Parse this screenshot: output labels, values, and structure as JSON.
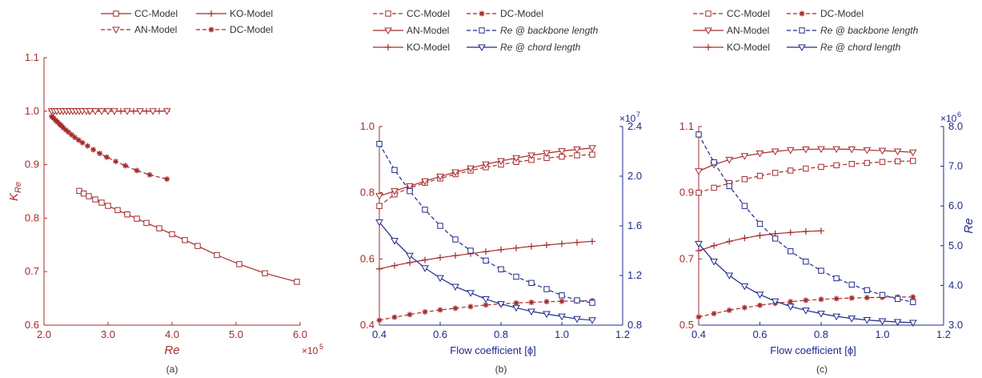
{
  "colors": {
    "red": "#a52a2a",
    "blue": "#1f2a8a",
    "dark": "#333333"
  },
  "chart_data": [
    {
      "panel": "(a)",
      "type": "line",
      "xlabel": "Re",
      "ylabel": "K_Re",
      "xlim": [
        2.0,
        6.0
      ],
      "ylim": [
        0.6,
        1.1
      ],
      "x_ticks": [
        "2.0",
        "3.0",
        "4.0",
        "5.0",
        "6.0"
      ],
      "y_ticks": [
        "0.6",
        "0.7",
        "0.8",
        "0.9",
        "1.0",
        "1.1"
      ],
      "x_multiplier": "×10",
      "x_multiplier_exp": "5",
      "legend": [
        "CC-Model",
        "KO-Model",
        "AN-Model",
        "DC-Model"
      ],
      "series": [
        {
          "name": "CC-Model",
          "style": "solid",
          "marker": "square",
          "x": [
            2.55,
            2.62,
            2.7,
            2.8,
            2.9,
            3.0,
            3.15,
            3.3,
            3.45,
            3.6,
            3.8,
            4.0,
            4.2,
            4.4,
            4.7,
            5.05,
            5.45,
            5.95
          ],
          "y": [
            0.851,
            0.846,
            0.841,
            0.835,
            0.829,
            0.823,
            0.815,
            0.807,
            0.799,
            0.791,
            0.781,
            0.77,
            0.759,
            0.748,
            0.731,
            0.714,
            0.697,
            0.681
          ]
        },
        {
          "name": "KO-Model",
          "style": "solid",
          "marker": "plus",
          "x": [
            2.12,
            2.2,
            2.3,
            2.4,
            2.5,
            2.6,
            2.7,
            2.8,
            2.9,
            3.0,
            3.2,
            3.4,
            3.6,
            3.8,
            3.92
          ],
          "y": [
            1.0,
            1.0,
            1.0,
            1.0,
            1.0,
            1.0,
            1.0,
            1.0,
            1.0,
            1.0,
            1.0,
            1.0,
            1.0,
            1.0,
            1.0
          ]
        },
        {
          "name": "AN-Model",
          "style": "dashed",
          "marker": "triangle-down",
          "x": [
            2.12,
            2.16,
            2.2,
            2.25,
            2.3,
            2.35,
            2.4,
            2.45,
            2.5,
            2.55,
            2.6,
            2.66,
            2.72,
            2.8,
            2.9,
            3.0,
            3.1,
            3.3,
            3.5,
            3.7,
            3.92
          ],
          "y": [
            1.0,
            1.0,
            1.0,
            1.0,
            1.0,
            1.0,
            1.0,
            1.0,
            1.0,
            1.0,
            1.0,
            1.0,
            1.0,
            1.0,
            1.0,
            1.0,
            1.0,
            1.0,
            1.0,
            1.0,
            1.0
          ]
        },
        {
          "name": "DC-Model",
          "style": "dashed",
          "marker": "asterisk",
          "x": [
            2.12,
            2.15,
            2.18,
            2.21,
            2.24,
            2.27,
            2.3,
            2.34,
            2.38,
            2.43,
            2.48,
            2.54,
            2.6,
            2.68,
            2.77,
            2.87,
            2.98,
            3.12,
            3.27,
            3.45,
            3.65,
            3.92
          ],
          "y": [
            0.99,
            0.987,
            0.983,
            0.98,
            0.976,
            0.973,
            0.969,
            0.965,
            0.961,
            0.956,
            0.951,
            0.946,
            0.941,
            0.935,
            0.928,
            0.921,
            0.914,
            0.906,
            0.898,
            0.889,
            0.881,
            0.873
          ]
        }
      ]
    },
    {
      "panel": "(b)",
      "type": "line",
      "xlabel": "Flow coefficient [ϕ]",
      "xlim": [
        0.4,
        1.2
      ],
      "ylim": [
        0.4,
        1.0
      ],
      "y2lim": [
        0.8,
        2.4
      ],
      "x_ticks": [
        "0.4",
        "0.6",
        "0.8",
        "1.0",
        "1.2"
      ],
      "y_ticks": [
        "0.4",
        "0.6",
        "0.8",
        "1.0"
      ],
      "y2_ticks": [
        "0.8",
        "1.2",
        "1.6",
        "2.0",
        "2.4"
      ],
      "y2_multiplier": "×10",
      "y2_multiplier_exp": "7",
      "legend": [
        "CC-Model",
        "DC-Model",
        "AN-Model",
        "Re @ backbone length",
        "KO-Model",
        "Re @ chord length"
      ],
      "series": [
        {
          "name": "CC-Model",
          "axis": "left",
          "style": "dashed",
          "marker": "square",
          "x": [
            0.4,
            0.45,
            0.5,
            0.55,
            0.6,
            0.65,
            0.7,
            0.75,
            0.8,
            0.85,
            0.9,
            0.95,
            1.0,
            1.05,
            1.1
          ],
          "y": [
            0.76,
            0.795,
            0.815,
            0.83,
            0.843,
            0.856,
            0.867,
            0.877,
            0.885,
            0.893,
            0.899,
            0.905,
            0.909,
            0.913,
            0.915
          ]
        },
        {
          "name": "AN-Model",
          "axis": "left",
          "style": "solid",
          "marker": "triangle-down",
          "x": [
            0.4,
            0.45,
            0.5,
            0.55,
            0.6,
            0.65,
            0.7,
            0.75,
            0.8,
            0.85,
            0.9,
            0.95,
            1.0,
            1.05,
            1.1
          ],
          "y": [
            0.79,
            0.805,
            0.82,
            0.835,
            0.849,
            0.862,
            0.874,
            0.886,
            0.896,
            0.905,
            0.913,
            0.92,
            0.926,
            0.931,
            0.935
          ]
        },
        {
          "name": "KO-Model",
          "axis": "left",
          "style": "solid",
          "marker": "plus",
          "x": [
            0.4,
            0.45,
            0.5,
            0.55,
            0.6,
            0.65,
            0.7,
            0.75,
            0.8,
            0.85,
            0.9,
            0.95,
            1.0,
            1.05,
            1.1
          ],
          "y": [
            0.57,
            0.58,
            0.589,
            0.597,
            0.604,
            0.61,
            0.616,
            0.622,
            0.628,
            0.633,
            0.638,
            0.642,
            0.646,
            0.65,
            0.653
          ]
        },
        {
          "name": "DC-Model",
          "axis": "left",
          "style": "dashed",
          "marker": "asterisk",
          "x": [
            0.4,
            0.45,
            0.5,
            0.55,
            0.6,
            0.65,
            0.7,
            0.75,
            0.8,
            0.85,
            0.9,
            0.95,
            1.0,
            1.05,
            1.1
          ],
          "y": [
            0.415,
            0.424,
            0.432,
            0.44,
            0.446,
            0.451,
            0.456,
            0.461,
            0.464,
            0.467,
            0.469,
            0.471,
            0.472,
            0.473,
            0.474
          ]
        },
        {
          "name": "Re @ backbone length",
          "axis": "right",
          "style": "dashed",
          "marker": "square",
          "x": [
            0.4,
            0.45,
            0.5,
            0.55,
            0.6,
            0.65,
            0.7,
            0.75,
            0.8,
            0.85,
            0.9,
            0.95,
            1.0,
            1.05,
            1.1
          ],
          "y": [
            2.26,
            2.05,
            1.88,
            1.73,
            1.6,
            1.49,
            1.4,
            1.32,
            1.25,
            1.19,
            1.14,
            1.09,
            1.04,
            1.0,
            0.98
          ]
        },
        {
          "name": "Re @ chord length",
          "axis": "right",
          "style": "solid",
          "marker": "triangle-down",
          "x": [
            0.4,
            0.45,
            0.5,
            0.55,
            0.6,
            0.65,
            0.7,
            0.75,
            0.8,
            0.85,
            0.9,
            0.95,
            1.0,
            1.05,
            1.1
          ],
          "y": [
            1.63,
            1.48,
            1.36,
            1.26,
            1.18,
            1.11,
            1.06,
            1.01,
            0.97,
            0.94,
            0.91,
            0.89,
            0.87,
            0.85,
            0.84
          ]
        }
      ]
    },
    {
      "panel": "(c)",
      "type": "line",
      "xlabel": "Flow coefficient [ϕ]",
      "y2label": "Re",
      "xlim": [
        0.4,
        1.2
      ],
      "ylim": [
        0.5,
        1.1
      ],
      "y2lim": [
        3.0,
        8.0
      ],
      "x_ticks": [
        "0.4",
        "0.6",
        "0.8",
        "1.0",
        "1.2"
      ],
      "y_ticks": [
        "0.5",
        "0.7",
        "0.9",
        "1.1"
      ],
      "y2_ticks": [
        "3.0",
        "4.0",
        "5.0",
        "6.0",
        "7.0",
        "8.0"
      ],
      "y2_multiplier": "×10",
      "y2_multiplier_exp": "6",
      "legend": [
        "CC-Model",
        "DC-Model",
        "AN-Model",
        "Re @ backbone length",
        "KO-Model",
        "Re @ chord length"
      ],
      "series": [
        {
          "name": "CC-Model",
          "axis": "left",
          "style": "dashed",
          "marker": "square",
          "x": [
            0.4,
            0.45,
            0.5,
            0.55,
            0.6,
            0.65,
            0.7,
            0.75,
            0.8,
            0.85,
            0.9,
            0.95,
            1.0,
            1.05,
            1.1
          ],
          "y": [
            0.9,
            0.915,
            0.929,
            0.941,
            0.951,
            0.96,
            0.967,
            0.973,
            0.978,
            0.983,
            0.987,
            0.99,
            0.993,
            0.995,
            0.996
          ]
        },
        {
          "name": "AN-Model",
          "axis": "left",
          "style": "solid",
          "marker": "triangle-down",
          "x": [
            0.4,
            0.45,
            0.5,
            0.55,
            0.6,
            0.65,
            0.7,
            0.75,
            0.8,
            0.85,
            0.9,
            0.95,
            1.0,
            1.05,
            1.1
          ],
          "y": [
            0.965,
            0.985,
            1.0,
            1.011,
            1.019,
            1.025,
            1.029,
            1.031,
            1.032,
            1.032,
            1.031,
            1.029,
            1.027,
            1.025,
            1.022
          ]
        },
        {
          "name": "KO-Model",
          "axis": "left",
          "style": "solid",
          "marker": "plus",
          "x": [
            0.4,
            0.45,
            0.5,
            0.55,
            0.6,
            0.65,
            0.7,
            0.75,
            0.8
          ],
          "y": [
            0.725,
            0.74,
            0.753,
            0.763,
            0.771,
            0.776,
            0.78,
            0.783,
            0.785
          ]
        },
        {
          "name": "DC-Model",
          "axis": "left",
          "style": "dashed",
          "marker": "asterisk",
          "x": [
            0.4,
            0.45,
            0.5,
            0.55,
            0.6,
            0.65,
            0.7,
            0.75,
            0.8,
            0.85,
            0.9,
            0.95,
            1.0,
            1.05,
            1.1
          ],
          "y": [
            0.525,
            0.535,
            0.545,
            0.553,
            0.56,
            0.566,
            0.571,
            0.575,
            0.578,
            0.58,
            0.582,
            0.583,
            0.584,
            0.585,
            0.585
          ]
        },
        {
          "name": "Re @ backbone length",
          "axis": "right",
          "style": "dashed",
          "marker": "square",
          "x": [
            0.4,
            0.45,
            0.5,
            0.55,
            0.6,
            0.65,
            0.7,
            0.75,
            0.8,
            0.85,
            0.9,
            0.95,
            1.0,
            1.05,
            1.1
          ],
          "y": [
            7.8,
            7.1,
            6.5,
            6.0,
            5.55,
            5.18,
            4.86,
            4.6,
            4.37,
            4.18,
            4.02,
            3.88,
            3.76,
            3.66,
            3.58
          ]
        },
        {
          "name": "Re @ chord length",
          "axis": "right",
          "style": "solid",
          "marker": "triangle-down",
          "x": [
            0.4,
            0.45,
            0.5,
            0.55,
            0.6,
            0.65,
            0.7,
            0.75,
            0.8,
            0.85,
            0.9,
            0.95,
            1.0,
            1.05,
            1.1
          ],
          "y": [
            5.05,
            4.6,
            4.25,
            3.98,
            3.77,
            3.6,
            3.47,
            3.37,
            3.29,
            3.22,
            3.17,
            3.13,
            3.1,
            3.08,
            3.06
          ]
        }
      ]
    }
  ]
}
